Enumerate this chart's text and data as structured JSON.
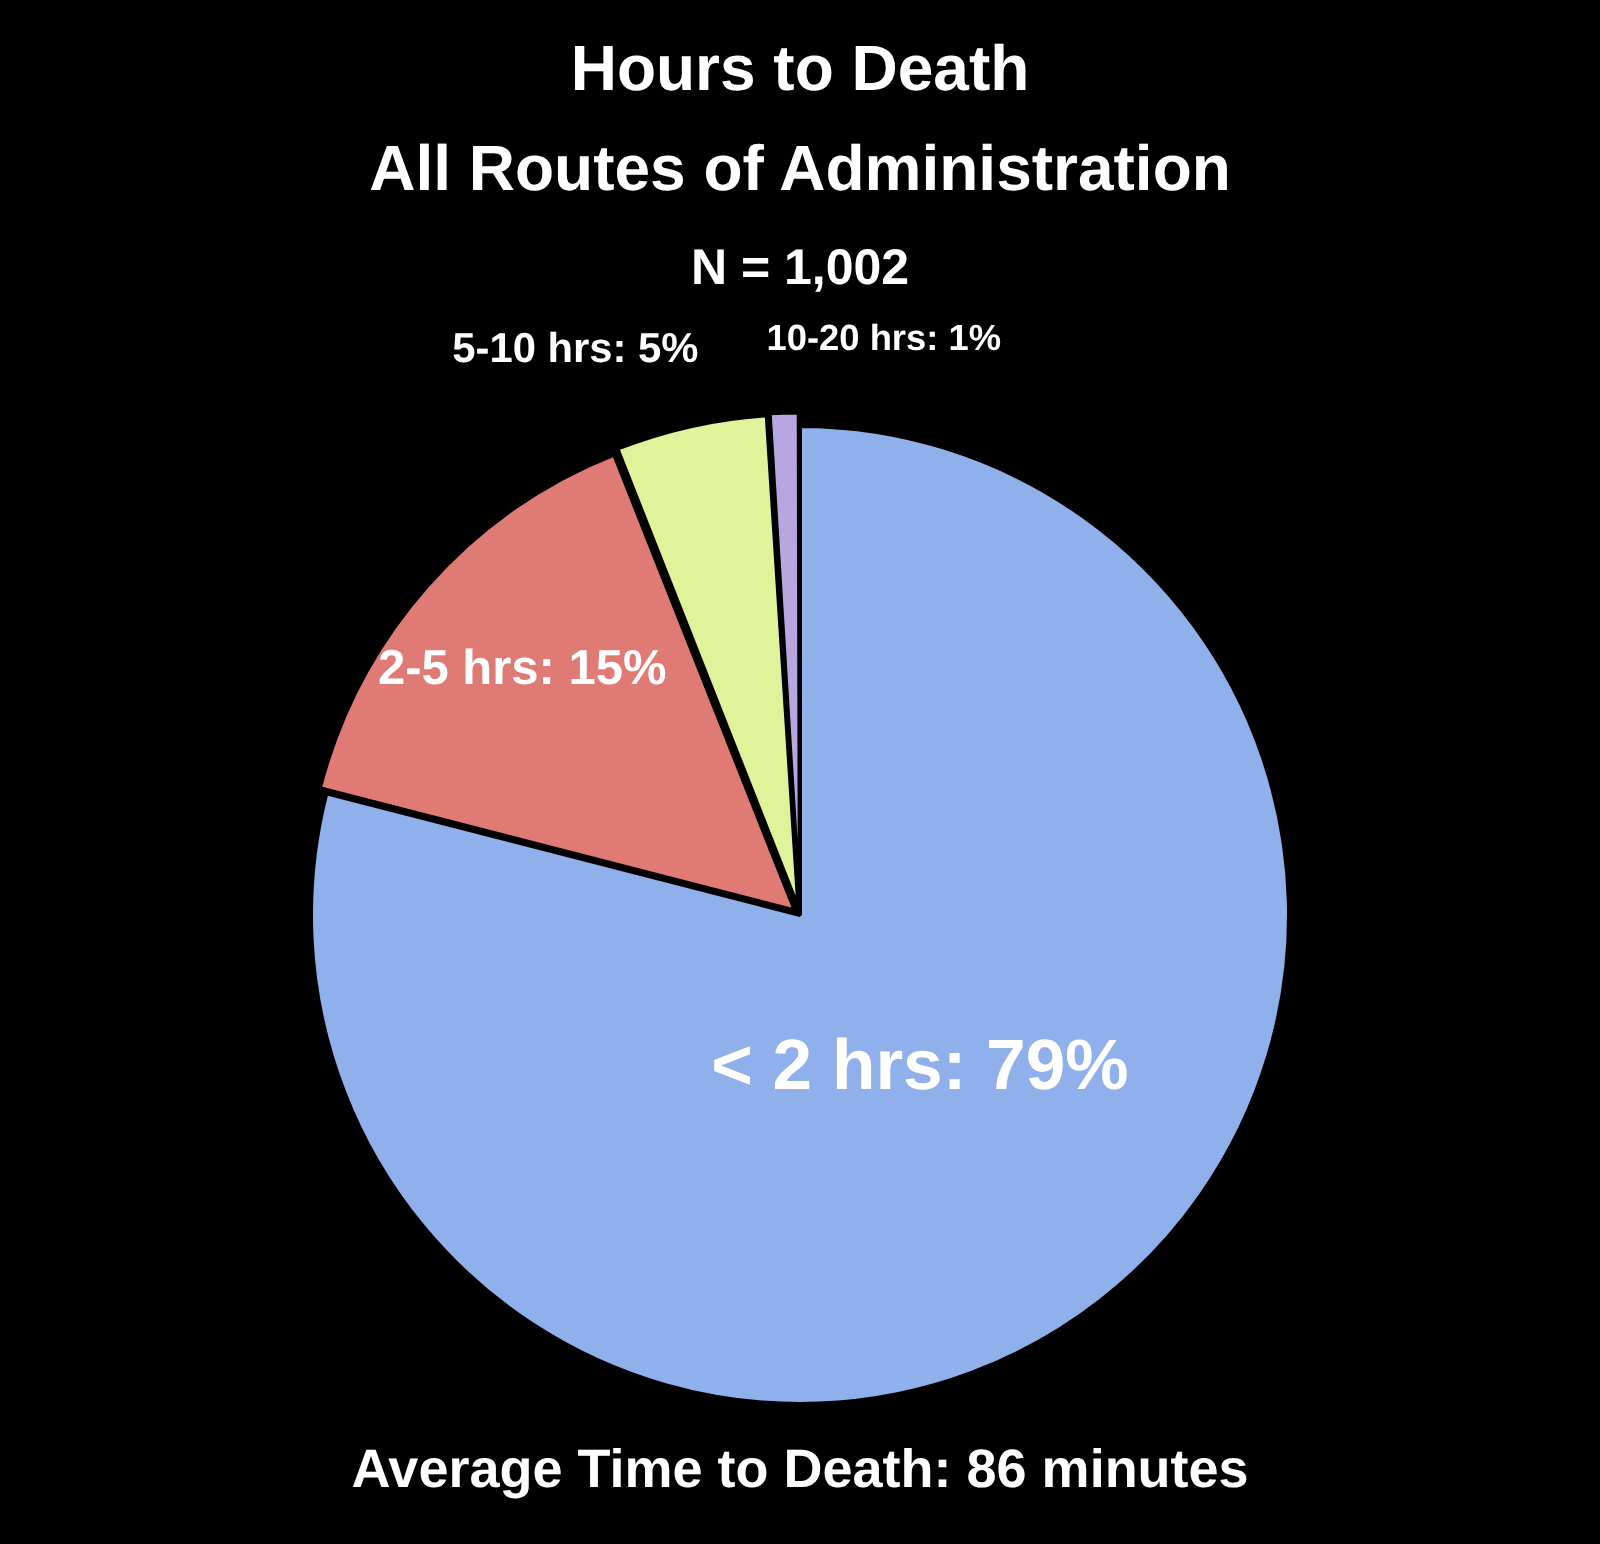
{
  "chart_data": {
    "type": "pie",
    "title": "Hours to Death",
    "subtitle": "All Routes of Administration",
    "categories": [
      "< 2 hrs",
      "2-5 hrs",
      "5-10 hrs",
      "10-20 hrs"
    ],
    "values": [
      79,
      15,
      5,
      1
    ],
    "value_labels": [
      "79%",
      "15%",
      "5%",
      "1%"
    ],
    "colors": [
      "#8fb0ea",
      "#e07a74",
      "#dff49a",
      "#b8a6e0"
    ],
    "annotations": [
      "N = 1,002",
      "Average Time to Death: 86 minutes"
    ]
  }
}
